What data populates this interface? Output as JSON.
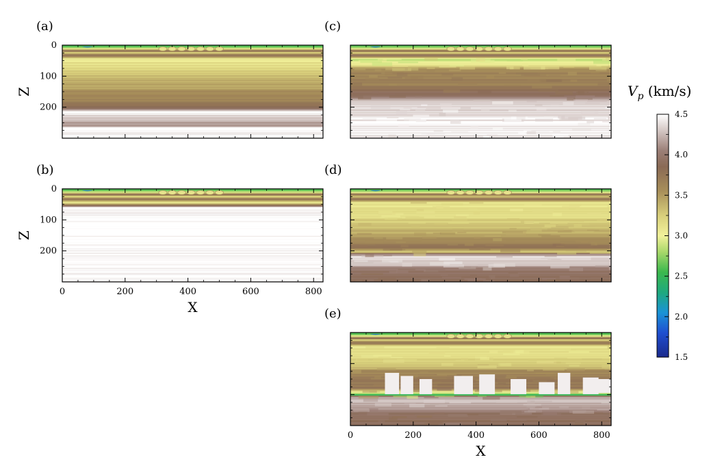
{
  "chart_data": {
    "type": "heatmap",
    "colorbar": {
      "label_main": "V",
      "label_sub": "p",
      "label_unit": " (km/s)",
      "ticks": [
        1.5,
        2.0,
        2.5,
        3.0,
        3.5,
        4.0,
        4.5
      ],
      "tick_labels": [
        "1.5",
        "2.0",
        "2.5",
        "3.0",
        "3.5",
        "4.0",
        "4.5"
      ],
      "range": [
        1.5,
        4.5
      ],
      "stops": [
        {
          "v": 1.5,
          "color": "#1b2a8c"
        },
        {
          "v": 1.8,
          "color": "#1f4fd0"
        },
        {
          "v": 2.05,
          "color": "#1a93d6"
        },
        {
          "v": 2.3,
          "color": "#1fa97e"
        },
        {
          "v": 2.55,
          "color": "#3bb84d"
        },
        {
          "v": 2.8,
          "color": "#a9d86a"
        },
        {
          "v": 3.0,
          "color": "#f1f19a"
        },
        {
          "v": 3.25,
          "color": "#d8cf7b"
        },
        {
          "v": 3.55,
          "color": "#a88f5a"
        },
        {
          "v": 3.85,
          "color": "#8a6a55"
        },
        {
          "v": 4.05,
          "color": "#9b7f77"
        },
        {
          "v": 4.3,
          "color": "#d4c7c4"
        },
        {
          "v": 4.5,
          "color": "#ffffff"
        }
      ]
    },
    "panels": [
      {
        "id": "a",
        "label": "(a)",
        "xlim": [
          0,
          830
        ],
        "ylim": [
          300,
          0
        ],
        "xticks": [
          0,
          200,
          400,
          600,
          800
        ],
        "yticks": [
          0,
          100,
          200
        ],
        "show_xticklabels": false,
        "show_yticklabels": true,
        "ylabel": "Z",
        "xlabel": "",
        "profile": [
          [
            0,
            2.6
          ],
          [
            6,
            2.7
          ],
          [
            12,
            3.0
          ],
          [
            18,
            3.9
          ],
          [
            25,
            3.2
          ],
          [
            34,
            3.85
          ],
          [
            45,
            3.05
          ],
          [
            70,
            3.15
          ],
          [
            100,
            3.35
          ],
          [
            130,
            3.45
          ],
          [
            160,
            3.6
          ],
          [
            195,
            3.7
          ],
          [
            205,
            4.0
          ],
          [
            215,
            4.5
          ],
          [
            258,
            4.1
          ],
          [
            268,
            4.5
          ],
          [
            300,
            4.5
          ]
        ],
        "blobs": true
      },
      {
        "id": "b",
        "label": "(b)",
        "xlim": [
          0,
          830
        ],
        "ylim": [
          300,
          0
        ],
        "xticks": [
          0,
          200,
          400,
          600,
          800
        ],
        "yticks": [
          0,
          100,
          200
        ],
        "xticklabels": [
          "0",
          "200",
          "400",
          "600",
          "800"
        ],
        "show_xticklabels": true,
        "show_yticklabels": true,
        "ylabel": "Z",
        "xlabel": "X",
        "profile": [
          [
            0,
            2.6
          ],
          [
            6,
            2.7
          ],
          [
            12,
            3.0
          ],
          [
            18,
            3.9
          ],
          [
            25,
            3.2
          ],
          [
            34,
            3.85
          ],
          [
            45,
            3.05
          ],
          [
            62,
            4.5
          ],
          [
            300,
            4.5
          ]
        ],
        "blobs": true
      },
      {
        "id": "c",
        "label": "(c)",
        "xlim": [
          0,
          830
        ],
        "ylim": [
          300,
          0
        ],
        "xticks": [
          0,
          200,
          400,
          600,
          800
        ],
        "yticks": [
          0,
          100,
          200
        ],
        "show_xticklabels": false,
        "show_yticklabels": false,
        "ylabel": "",
        "xlabel": "",
        "profile": [
          [
            0,
            2.6
          ],
          [
            6,
            2.7
          ],
          [
            12,
            3.0
          ],
          [
            18,
            3.9
          ],
          [
            25,
            3.2
          ],
          [
            34,
            3.85
          ],
          [
            45,
            2.9
          ],
          [
            60,
            3.0
          ],
          [
            80,
            3.6
          ],
          [
            110,
            3.65
          ],
          [
            140,
            3.7
          ],
          [
            150,
            3.9
          ],
          [
            170,
            4.0
          ],
          [
            180,
            4.35
          ],
          [
            220,
            4.4
          ],
          [
            260,
            4.45
          ],
          [
            300,
            4.45
          ]
        ],
        "blobs": true
      },
      {
        "id": "d",
        "label": "(d)",
        "xlim": [
          0,
          830
        ],
        "ylim": [
          300,
          0
        ],
        "xticks": [
          0,
          200,
          400,
          600,
          800
        ],
        "yticks": [
          0,
          100,
          200
        ],
        "show_xticklabels": false,
        "show_yticklabels": false,
        "ylabel": "",
        "xlabel": "",
        "profile": [
          [
            0,
            2.6
          ],
          [
            6,
            2.7
          ],
          [
            12,
            3.0
          ],
          [
            18,
            3.9
          ],
          [
            25,
            3.2
          ],
          [
            34,
            3.85
          ],
          [
            45,
            3.1
          ],
          [
            80,
            3.15
          ],
          [
            120,
            3.3
          ],
          [
            160,
            3.55
          ],
          [
            190,
            3.8
          ],
          [
            205,
            3.2
          ],
          [
            210,
            4.0
          ],
          [
            220,
            4.4
          ],
          [
            245,
            4.3
          ],
          [
            265,
            3.9
          ],
          [
            280,
            3.95
          ],
          [
            300,
            3.9
          ]
        ],
        "blobs": true
      },
      {
        "id": "e",
        "label": "(e)",
        "xlim": [
          0,
          830
        ],
        "ylim": [
          300,
          0
        ],
        "xticks": [
          0,
          200,
          400,
          600,
          800
        ],
        "yticks": [
          0,
          100,
          200
        ],
        "xticklabels": [
          "0",
          "200",
          "400",
          "600",
          "800"
        ],
        "show_xticklabels": true,
        "show_yticklabels": false,
        "ylabel": "",
        "xlabel": "X",
        "profile": [
          [
            0,
            2.6
          ],
          [
            6,
            2.7
          ],
          [
            12,
            3.0
          ],
          [
            18,
            3.9
          ],
          [
            25,
            3.2
          ],
          [
            34,
            3.85
          ],
          [
            45,
            3.1
          ],
          [
            80,
            3.15
          ],
          [
            110,
            3.3
          ],
          [
            125,
            3.6
          ],
          [
            150,
            3.7
          ],
          [
            180,
            3.8
          ],
          [
            200,
            2.6
          ],
          [
            205,
            3.9
          ],
          [
            215,
            4.3
          ],
          [
            240,
            4.2
          ],
          [
            265,
            3.9
          ],
          [
            300,
            3.9
          ]
        ],
        "blobs": true,
        "salt_bodies": true
      }
    ]
  }
}
